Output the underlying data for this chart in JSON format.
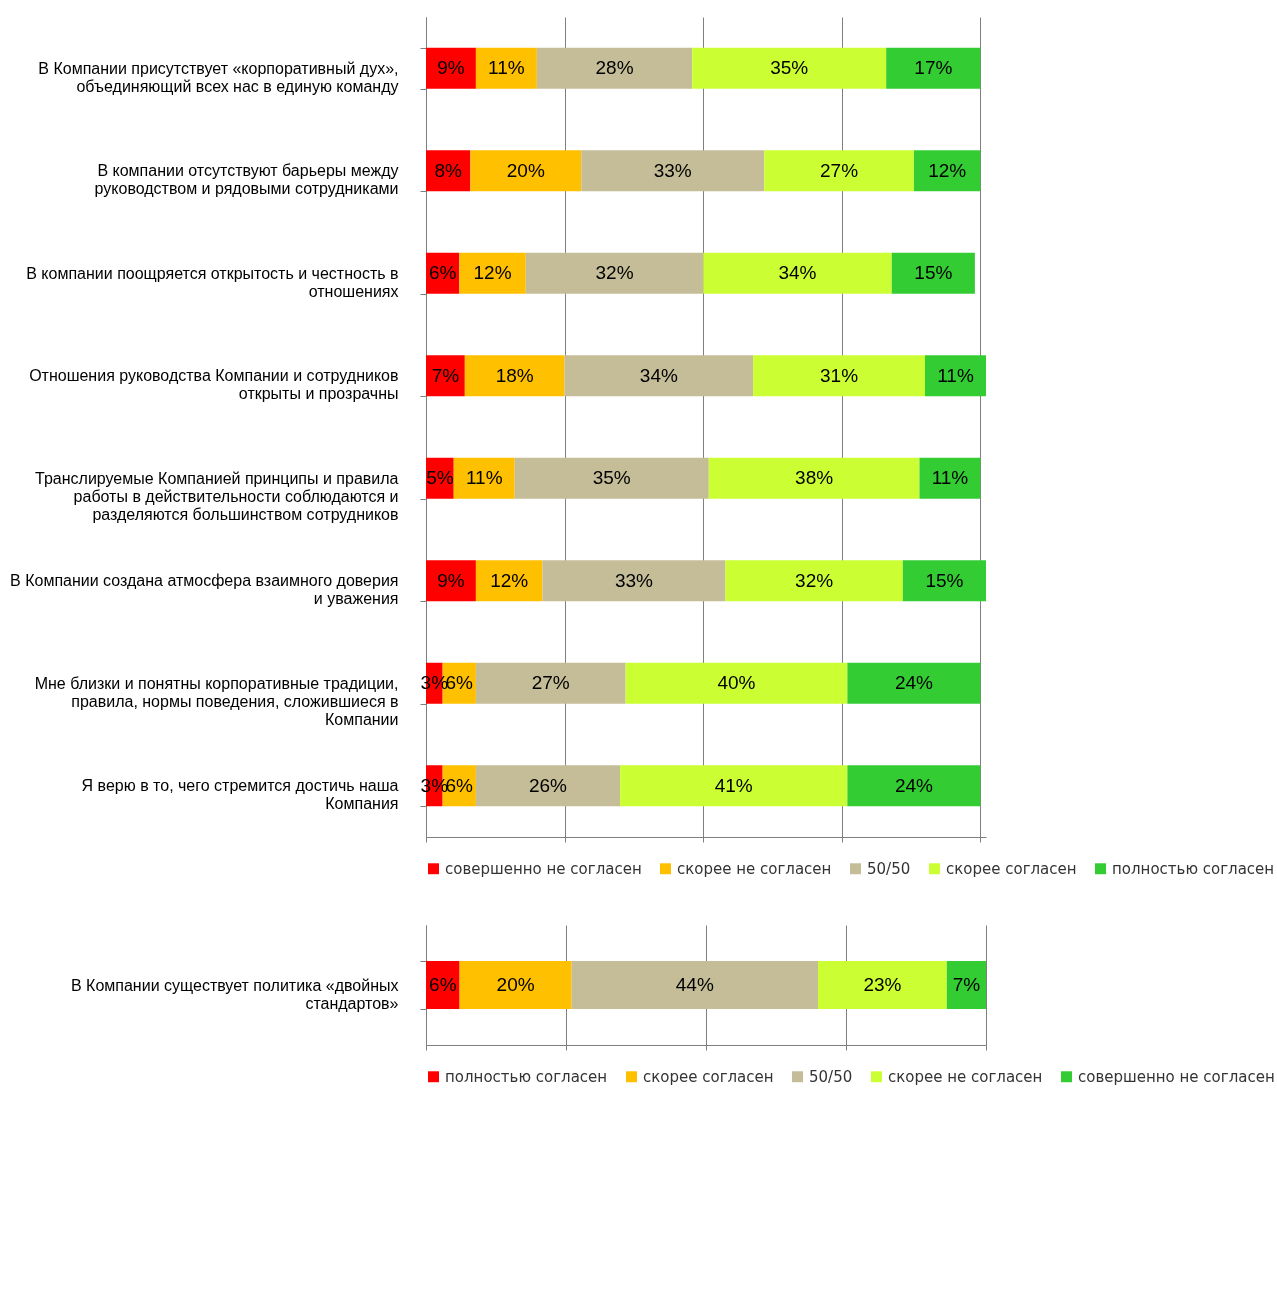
{
  "chart_data": [
    {
      "type": "bar",
      "orientation": "horizontal",
      "stacked": true,
      "categories": [
        "В Компании присутствует «корпоративный дух», объединяющий всех нас в единую команду",
        "В компании отсутствуют барьеры между руководством и рядовыми сотрудниками",
        "В компании поощряется открытость и честность в отношениях",
        "Отношения руководства Компании и сотрудников открыты и прозрачны",
        "Транслируемые Компанией принципы и правила работы в действительности соблюдаются и разделяются большинством сотрудников",
        "В Компании создана атмосфера взаимного доверия и уважения",
        "Мне близки и понятны корпоративные традиции, правила, нормы поведения, сложившиеся в Компании",
        "Я верю в то, чего стремится достичь наша Компания"
      ],
      "series": [
        {
          "name": "совершенно не согласен",
          "color": "#ff0000",
          "values": [
            9,
            8,
            6,
            7,
            5,
            9,
            3,
            3
          ],
          "value_labels": [
            "9%",
            "8%",
            "6%",
            "7%",
            "5%",
            "9%",
            "3%",
            "3%"
          ]
        },
        {
          "name": "скорее не согласен",
          "color": "#ffc000",
          "values": [
            11,
            20,
            12,
            18,
            11,
            12,
            6,
            6
          ],
          "value_labels": [
            "11%",
            "20%",
            "12%",
            "18%",
            "11%",
            "12%",
            "6%",
            "6%"
          ]
        },
        {
          "name": "50/50",
          "color": "#c4bd97",
          "values": [
            28,
            33,
            32,
            34,
            35,
            33,
            27,
            26
          ],
          "value_labels": [
            "28%",
            "33%",
            "32%",
            "34%",
            "35%",
            "33%",
            "27%",
            "26%"
          ]
        },
        {
          "name": "скорее согласен",
          "color": "#ccff33",
          "values": [
            35,
            27,
            34,
            31,
            38,
            32,
            40,
            41
          ],
          "value_labels": [
            "35%",
            "27%",
            "34%",
            "31%",
            "38%",
            "32%",
            "40%",
            "41%"
          ]
        },
        {
          "name": "полностью согласен",
          "color": "#33cc33",
          "values": [
            17,
            12,
            15,
            11,
            11,
            15,
            24,
            24
          ],
          "value_labels": [
            "17%",
            "12%",
            "15%",
            "11%",
            "11%",
            "15%",
            "24%",
            "24%"
          ]
        }
      ],
      "xlim": [
        0,
        101
      ],
      "xticks": [
        {
          "value": 0,
          "label": null
        },
        {
          "value": 25,
          "label": null
        },
        {
          "value": 50,
          "label": null
        },
        {
          "value": 75,
          "label": null
        },
        {
          "value": 100,
          "label": null
        }
      ],
      "tick_labels": "y",
      "grid": "x",
      "legend": "bottom"
    },
    {
      "type": "bar",
      "orientation": "horizontal",
      "stacked": true,
      "categories": [
        "В Компании существует политика «двойных стандартов»"
      ],
      "series": [
        {
          "name": "полностью согласен",
          "color": "#ff0000",
          "values": [
            6
          ],
          "value_labels": [
            "6%"
          ]
        },
        {
          "name": "скорее согласен",
          "color": "#ffc000",
          "values": [
            20
          ],
          "value_labels": [
            "20%"
          ]
        },
        {
          "name": "50/50",
          "color": "#c4bd97",
          "values": [
            44
          ],
          "value_labels": [
            "44%"
          ]
        },
        {
          "name": "скорее не согласен",
          "color": "#ccff33",
          "values": [
            23
          ],
          "value_labels": [
            "23%"
          ]
        },
        {
          "name": "совершенно не согласен",
          "color": "#33cc33",
          "values": [
            7
          ],
          "value_labels": [
            "7%"
          ]
        }
      ],
      "xlim": [
        0,
        100
      ],
      "xticks": [
        {
          "value": 0,
          "label": null
        },
        {
          "value": 25,
          "label": null
        },
        {
          "value": 50,
          "label": null
        },
        {
          "value": 75,
          "label": null
        },
        {
          "value": 100,
          "label": null
        }
      ],
      "tick_labels": "y",
      "grid": "x",
      "legend": "bottom"
    }
  ]
}
